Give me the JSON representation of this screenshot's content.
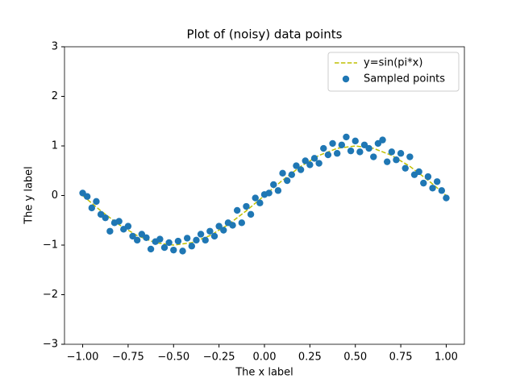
{
  "chart_data": {
    "type": "scatter",
    "title": "Plot of (noisy) data points",
    "xlabel": "The x label",
    "ylabel": "The y label",
    "xlim": [
      -1.1,
      1.1
    ],
    "ylim": [
      -3,
      3
    ],
    "xticks": [
      {
        "value": -1,
        "label": "−1.00"
      },
      {
        "value": -0.75,
        "label": "−0.75"
      },
      {
        "value": -0.5,
        "label": "−0.50"
      },
      {
        "value": -0.25,
        "label": "−0.25"
      },
      {
        "value": 0,
        "label": "0.00"
      },
      {
        "value": 0.25,
        "label": "0.25"
      },
      {
        "value": 0.5,
        "label": "0.50"
      },
      {
        "value": 0.75,
        "label": "0.75"
      },
      {
        "value": 1,
        "label": "1.00"
      }
    ],
    "yticks": [
      {
        "value": -3,
        "label": "−3"
      },
      {
        "value": -2,
        "label": "−2"
      },
      {
        "value": -1,
        "label": "−1"
      },
      0,
      1,
      2,
      3
    ],
    "legend": "upper right",
    "series": [
      {
        "name": "y=sin(pi*x)",
        "kind": "line",
        "dashed": true,
        "color": "#bfbf00",
        "x": [
          -1,
          -0.9,
          -0.8,
          -0.7,
          -0.6,
          -0.5,
          -0.4,
          -0.3,
          -0.2,
          -0.1,
          0,
          0.1,
          0.2,
          0.3,
          0.4,
          0.5,
          0.6,
          0.7,
          0.8,
          0.9,
          1
        ],
        "values": [
          0,
          -0.309,
          -0.588,
          -0.809,
          -0.951,
          -1,
          -0.951,
          -0.809,
          -0.588,
          -0.309,
          0,
          0.309,
          0.588,
          0.809,
          0.951,
          1,
          0.951,
          0.809,
          0.588,
          0.309,
          0
        ]
      },
      {
        "name": "Sampled points",
        "kind": "points",
        "color": "#1f77b4",
        "x": [
          -1,
          -0.975,
          -0.95,
          -0.925,
          -0.9,
          -0.875,
          -0.85,
          -0.825,
          -0.8,
          -0.775,
          -0.75,
          -0.725,
          -0.7,
          -0.675,
          -0.65,
          -0.625,
          -0.6,
          -0.575,
          -0.55,
          -0.525,
          -0.5,
          -0.475,
          -0.45,
          -0.425,
          -0.4,
          -0.375,
          -0.35,
          -0.325,
          -0.3,
          -0.275,
          -0.25,
          -0.225,
          -0.2,
          -0.175,
          -0.15,
          -0.125,
          -0.1,
          -0.075,
          -0.05,
          -0.025,
          0,
          0.025,
          0.05,
          0.075,
          0.1,
          0.125,
          0.15,
          0.175,
          0.2,
          0.225,
          0.25,
          0.275,
          0.3,
          0.325,
          0.35,
          0.375,
          0.4,
          0.425,
          0.45,
          0.475,
          0.5,
          0.525,
          0.55,
          0.575,
          0.6,
          0.625,
          0.65,
          0.675,
          0.7,
          0.725,
          0.75,
          0.775,
          0.8,
          0.825,
          0.85,
          0.875,
          0.9,
          0.925,
          0.95,
          0.975,
          1
        ],
        "values": [
          0.05,
          -0.02,
          -0.25,
          -0.12,
          -0.38,
          -0.45,
          -0.72,
          -0.55,
          -0.52,
          -0.68,
          -0.62,
          -0.82,
          -0.9,
          -0.78,
          -0.85,
          -1.08,
          -0.93,
          -0.88,
          -1.05,
          -0.95,
          -1.1,
          -0.92,
          -1.12,
          -0.86,
          -1.02,
          -0.9,
          -0.78,
          -0.9,
          -0.72,
          -0.82,
          -0.62,
          -0.7,
          -0.55,
          -0.6,
          -0.3,
          -0.55,
          -0.22,
          -0.38,
          -0.05,
          -0.15,
          0.02,
          0.05,
          0.22,
          0.1,
          0.45,
          0.3,
          0.42,
          0.6,
          0.52,
          0.7,
          0.62,
          0.75,
          0.65,
          0.95,
          0.82,
          1.05,
          0.85,
          1.02,
          1.18,
          0.9,
          1.1,
          0.88,
          1.02,
          0.95,
          0.78,
          1.05,
          1.12,
          0.68,
          0.88,
          0.72,
          0.85,
          0.55,
          0.78,
          0.42,
          0.48,
          0.25,
          0.38,
          0.15,
          0.28,
          0.1,
          -0.05
        ]
      }
    ]
  }
}
